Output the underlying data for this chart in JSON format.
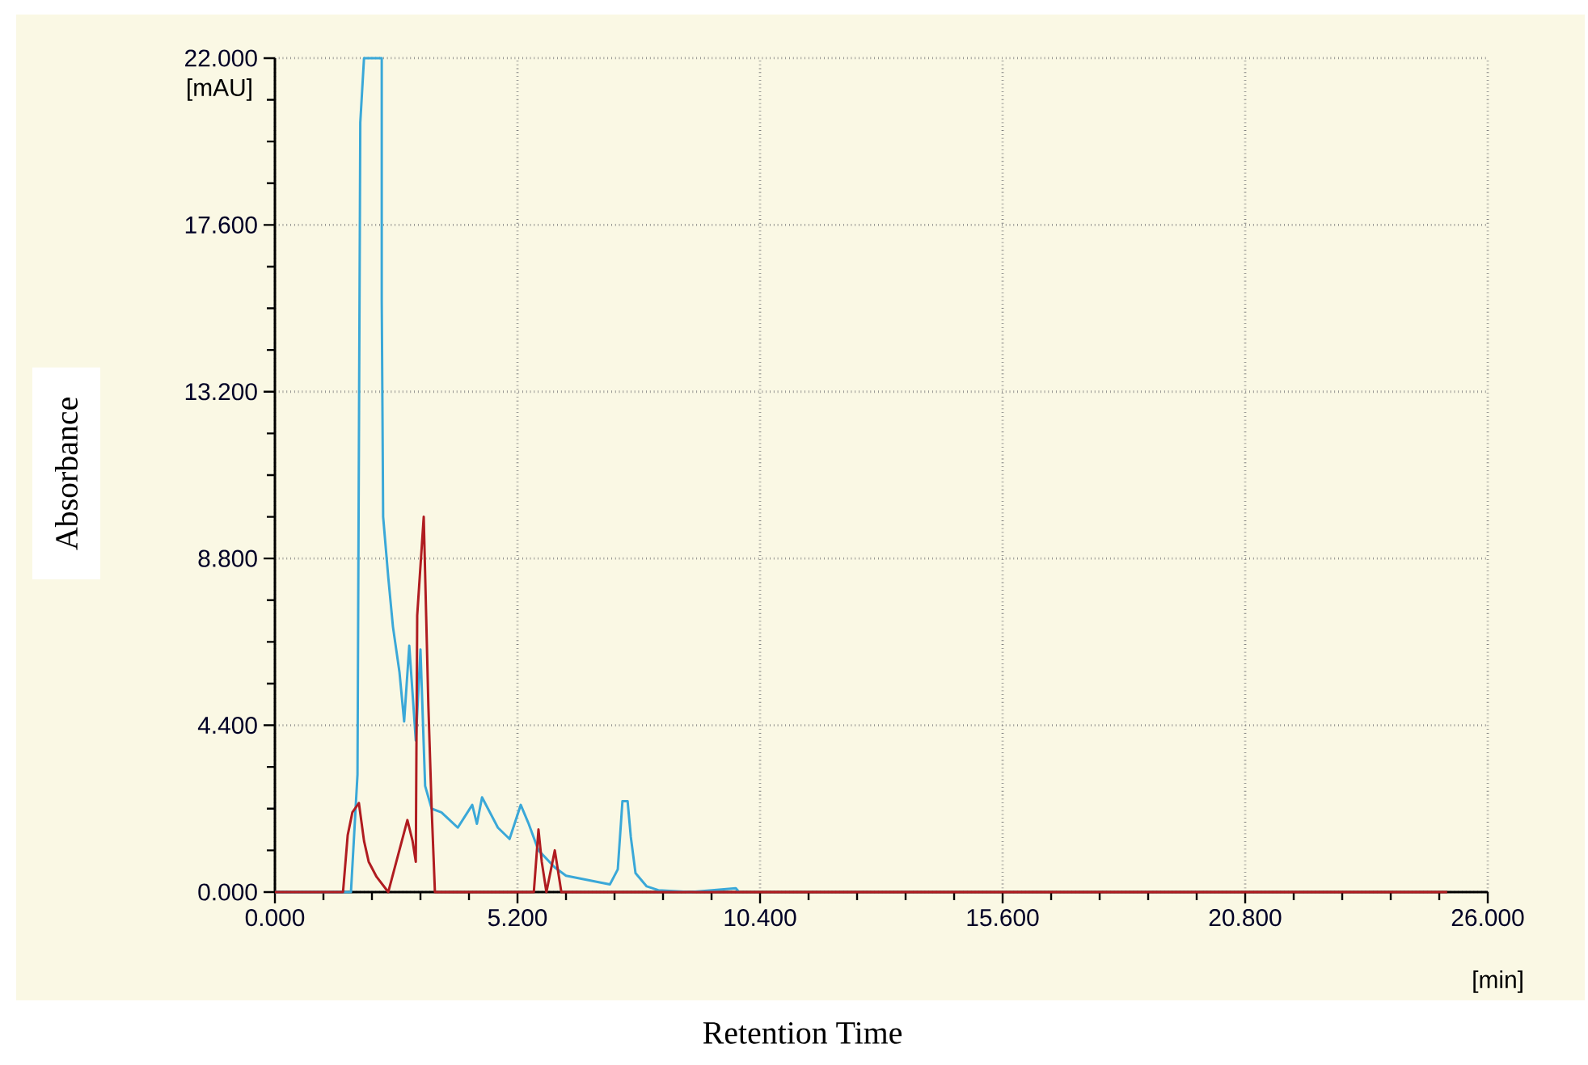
{
  "chart_data": {
    "type": "line",
    "xlabel": "Retention Time",
    "ylabel": "Absorbance",
    "annotations": [
      "[mAU]",
      "[min]"
    ],
    "xlim": [
      0,
      26
    ],
    "ylim": [
      0,
      22
    ],
    "xticks": [
      {
        "value": 0,
        "label": "0.000"
      },
      {
        "value": 5.2,
        "label": "5.200"
      },
      {
        "value": 10.4,
        "label": "10.400"
      },
      {
        "value": 15.6,
        "label": "15.600"
      },
      {
        "value": 20.8,
        "label": "20.800"
      },
      {
        "value": 26,
        "label": "26.000"
      }
    ],
    "yticks": [
      {
        "value": 0,
        "label": "0.000"
      },
      {
        "value": 4.4,
        "label": "4.400"
      },
      {
        "value": 8.8,
        "label": "8.800"
      },
      {
        "value": 13.2,
        "label": "13.200"
      },
      {
        "value": 17.6,
        "label": "17.600"
      },
      {
        "value": 22,
        "label": "22.000"
      }
    ],
    "grid": true,
    "marker": "none",
    "line_style": "solid",
    "series": [
      {
        "color": "#3aa8d8",
        "x": [
          0,
          1.63,
          1.77,
          1.83,
          1.91,
          2.29,
          2.29,
          2.32,
          2.43,
          2.53,
          2.67,
          2.77,
          2.88,
          3.02,
          3.12,
          3.22,
          3.36,
          3.57,
          3.92,
          4.23,
          4.33,
          4.44,
          4.61,
          4.78,
          5.03,
          5.27,
          5.44,
          5.65,
          6.0,
          6.24,
          7.18,
          7.35,
          7.45,
          7.56,
          7.63,
          7.73,
          7.97,
          8.22,
          8.91,
          9.88,
          9.95
        ],
        "values": [
          0,
          0,
          3.1,
          20.3,
          22,
          22,
          15.6,
          9.9,
          8.3,
          7.0,
          5.8,
          4.5,
          6.5,
          4.0,
          6.4,
          2.8,
          2.2,
          2.1,
          1.7,
          2.3,
          1.8,
          2.5,
          2.1,
          1.7,
          1.4,
          2.3,
          1.8,
          1.1,
          0.65,
          0.43,
          0.2,
          0.6,
          2.4,
          2.4,
          1.45,
          0.5,
          0.15,
          0.05,
          0,
          0.1,
          0
        ]
      },
      {
        "color": "#b01c20",
        "x": [
          0,
          1.46,
          1.56,
          1.66,
          1.8,
          1.91,
          2.01,
          2.18,
          2.43,
          2.84,
          2.95,
          3.02,
          3.05,
          3.19,
          3.29,
          3.36,
          3.43,
          5.55,
          5.65,
          5.72,
          5.82,
          6.0,
          6.14,
          25.13
        ],
        "values": [
          0,
          0,
          1.5,
          2.1,
          2.35,
          1.35,
          0.8,
          0.4,
          0,
          1.9,
          1.35,
          0.8,
          7.3,
          9.9,
          4.9,
          2.2,
          0,
          0,
          1.65,
          0.8,
          0,
          1.1,
          0,
          0
        ]
      }
    ]
  }
}
